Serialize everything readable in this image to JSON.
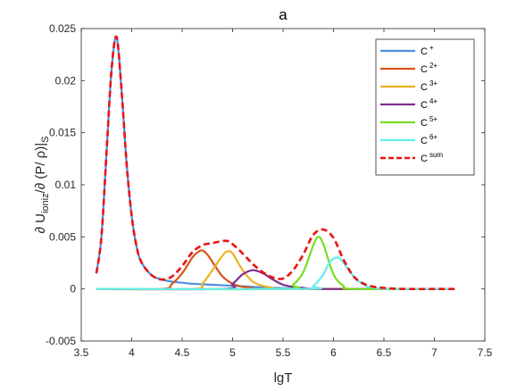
{
  "chart_data": {
    "type": "line",
    "title": "a",
    "xlabel": "lgT",
    "ylabel": "∂ U_ioniz/∂ (P/ ρ)|_S",
    "ylabel_parts": {
      "main": "∂ U",
      "sub1": "ioniz",
      "mid": "/∂ (P/ ρ)|",
      "sub2": "S"
    },
    "xlim": [
      3.5,
      7.5
    ],
    "ylim": [
      -0.005,
      0.025
    ],
    "xticks": [
      "3.5",
      "4",
      "4.5",
      "5",
      "5.5",
      "6",
      "6.5",
      "7",
      "7.5"
    ],
    "yticks": [
      "-0.005",
      "0",
      "0.005",
      "0.01",
      "0.015",
      "0.02",
      "0.025"
    ],
    "grid": false,
    "legend_position": "top-right",
    "series": [
      {
        "name": "C",
        "sup": "+",
        "color": "#4a90e2",
        "dash": false,
        "x": [
          3.65,
          3.7,
          3.75,
          3.8,
          3.85,
          3.9,
          3.95,
          4.0,
          4.05,
          4.1,
          4.2,
          4.3,
          4.4,
          4.5,
          4.6,
          4.8,
          5.0,
          5.2,
          5.4,
          5.6,
          6.0,
          7.2
        ],
        "y": [
          0.0015,
          0.005,
          0.013,
          0.021,
          0.0242,
          0.019,
          0.012,
          0.007,
          0.004,
          0.0025,
          0.0013,
          0.0009,
          0.0007,
          0.0006,
          0.0005,
          0.0004,
          0.0003,
          0.0002,
          0.0001,
          5e-05,
          0.0,
          0.0
        ]
      },
      {
        "name": "C",
        "sup": "2+",
        "color": "#d95319",
        "dash": false,
        "x": [
          3.65,
          4.3,
          4.4,
          4.5,
          4.6,
          4.65,
          4.7,
          4.75,
          4.8,
          4.9,
          5.0,
          5.1,
          5.2,
          5.4,
          7.2
        ],
        "y": [
          0.0,
          0.0,
          0.0005,
          0.0015,
          0.003,
          0.0035,
          0.0037,
          0.0033,
          0.0026,
          0.0012,
          0.0005,
          0.0002,
          0.0001,
          0.0,
          0.0
        ]
      },
      {
        "name": "C",
        "sup": "3+",
        "color": "#edb120",
        "dash": false,
        "x": [
          3.65,
          4.6,
          4.7,
          4.8,
          4.9,
          4.95,
          5.0,
          5.1,
          5.2,
          5.3,
          5.4,
          5.5,
          7.2
        ],
        "y": [
          0.0,
          0.0,
          0.0005,
          0.0018,
          0.0032,
          0.0036,
          0.0034,
          0.0018,
          0.0007,
          0.0003,
          0.0001,
          0.0,
          0.0
        ]
      },
      {
        "name": "C",
        "sup": "4+",
        "color": "#7e2f8e",
        "dash": false,
        "x": [
          3.65,
          4.9,
          5.0,
          5.1,
          5.2,
          5.3,
          5.4,
          5.5,
          5.6,
          5.7,
          5.9,
          7.2
        ],
        "y": [
          0.0,
          0.0,
          0.0005,
          0.0014,
          0.0018,
          0.0015,
          0.0009,
          0.0004,
          0.0002,
          0.0001,
          0.0,
          0.0
        ]
      },
      {
        "name": "C",
        "sup": "5+",
        "color": "#77dd22",
        "dash": false,
        "x": [
          3.65,
          5.5,
          5.6,
          5.7,
          5.8,
          5.85,
          5.9,
          6.0,
          6.1,
          6.2,
          7.2
        ],
        "y": [
          0.0,
          0.0,
          0.0004,
          0.0016,
          0.0042,
          0.005,
          0.0043,
          0.0014,
          0.0003,
          0.0,
          0.0
        ]
      },
      {
        "name": "C",
        "sup": "6+",
        "color": "#66eeee",
        "dash": false,
        "x": [
          3.65,
          5.7,
          5.8,
          5.9,
          5.95,
          6.0,
          6.05,
          6.1,
          6.2,
          6.3,
          6.4,
          6.6,
          7.2
        ],
        "y": [
          0.0,
          0.0,
          0.0003,
          0.0014,
          0.0024,
          0.0029,
          0.003,
          0.0025,
          0.0012,
          0.0004,
          0.0001,
          0.0,
          0.0
        ]
      },
      {
        "name": "C",
        "sup": "sum",
        "color": "#ee1111",
        "dash": true,
        "x": [
          3.65,
          3.7,
          3.75,
          3.8,
          3.85,
          3.9,
          3.95,
          4.0,
          4.05,
          4.1,
          4.2,
          4.3,
          4.4,
          4.5,
          4.6,
          4.7,
          4.8,
          4.9,
          4.95,
          5.0,
          5.1,
          5.2,
          5.3,
          5.4,
          5.5,
          5.6,
          5.7,
          5.8,
          5.9,
          6.0,
          6.1,
          6.2,
          6.3,
          6.4,
          6.5,
          6.7,
          7.2
        ],
        "y": [
          0.0015,
          0.005,
          0.013,
          0.021,
          0.0242,
          0.019,
          0.012,
          0.007,
          0.004,
          0.0025,
          0.0013,
          0.0009,
          0.0012,
          0.0022,
          0.0035,
          0.0042,
          0.0044,
          0.0046,
          0.0046,
          0.0043,
          0.0034,
          0.0024,
          0.0016,
          0.0011,
          0.001,
          0.0018,
          0.0033,
          0.0052,
          0.0057,
          0.0049,
          0.0028,
          0.0012,
          0.0005,
          0.0002,
          0.0001,
          0.0,
          0.0
        ]
      }
    ]
  }
}
